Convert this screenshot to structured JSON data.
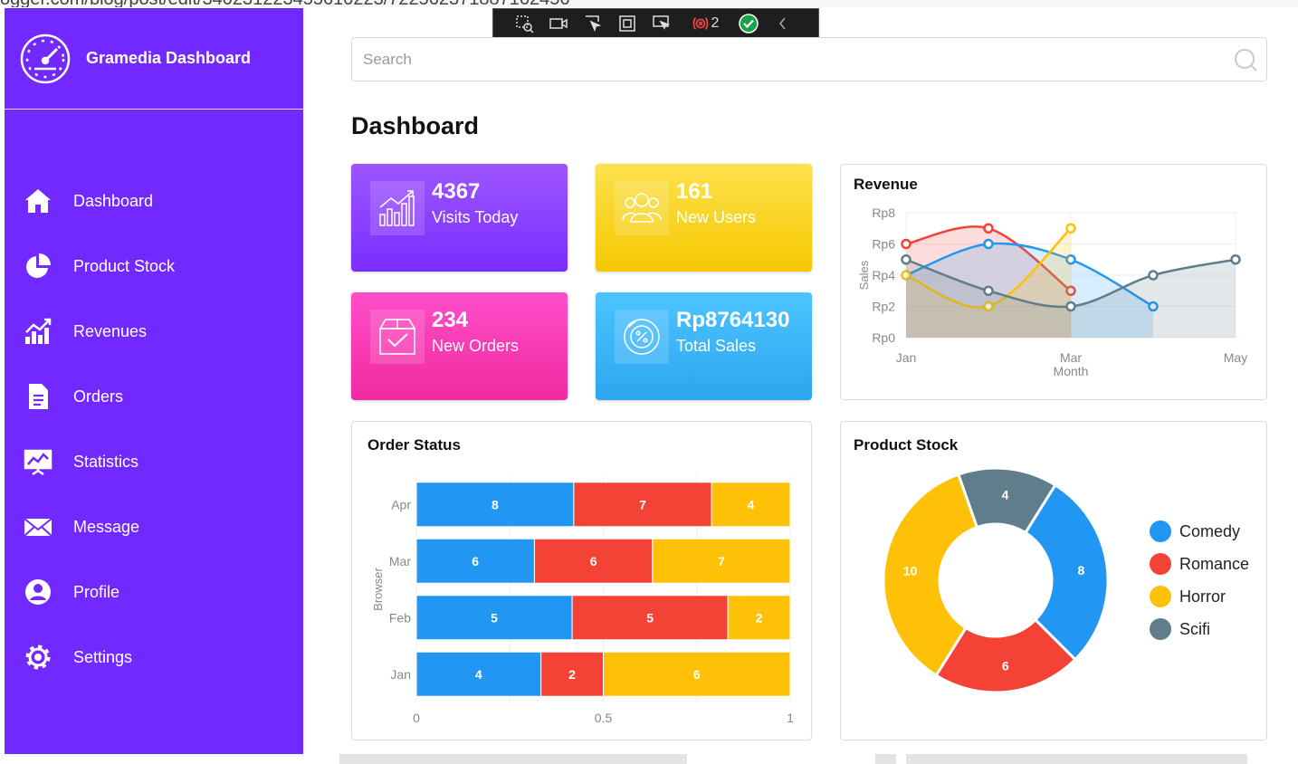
{
  "browser": {
    "url_fragment": "ogger.com/blog/post/edit/340231223455610223/722562371887162456",
    "icons": [
      "search-icon",
      "share-icon",
      "star-icon"
    ]
  },
  "devtools": {
    "error_count": "2"
  },
  "sidebar": {
    "brand": "Gramedia Dashboard",
    "items": [
      {
        "label": "Dashboard",
        "icon": "home-icon"
      },
      {
        "label": "Product Stock",
        "icon": "pie-chart-icon"
      },
      {
        "label": "Revenues",
        "icon": "bar-chart-icon"
      },
      {
        "label": "Orders",
        "icon": "document-icon"
      },
      {
        "label": "Statistics",
        "icon": "statistics-icon"
      },
      {
        "label": "Message",
        "icon": "envelope-icon"
      },
      {
        "label": "Profile",
        "icon": "user-icon"
      },
      {
        "label": "Settings",
        "icon": "gear-icon"
      }
    ]
  },
  "search": {
    "placeholder": "Search"
  },
  "page": {
    "title": "Dashboard"
  },
  "cards": {
    "visits": {
      "value": "4367",
      "label": "Visits Today"
    },
    "users": {
      "value": "161",
      "label": "New Users"
    },
    "orders": {
      "value": "234",
      "label": "New Orders"
    },
    "sales": {
      "value": "Rp8764130",
      "label": "Total Sales"
    }
  },
  "colors": {
    "sidebar": "#7129ff",
    "blue": "#2196f3",
    "red": "#f44336",
    "yellow": "#ffc107",
    "gray": "#607d8b"
  },
  "chart_data": [
    {
      "id": "revenue",
      "type": "area",
      "title": "Revenue",
      "xlabel": "Month",
      "ylabel": "Sales",
      "x_ticks": [
        "Jan",
        "Mar",
        "May"
      ],
      "y_ticks": [
        "Rp0",
        "Rp2",
        "Rp4",
        "Rp6",
        "Rp8"
      ],
      "ylim": [
        0,
        8
      ],
      "series": [
        {
          "color": "#f44336",
          "x": [
            1,
            2,
            3
          ],
          "values": [
            6,
            7,
            3
          ]
        },
        {
          "color": "#2196f3",
          "x": [
            1,
            2,
            3,
            4
          ],
          "values": [
            4,
            6,
            5,
            2
          ]
        },
        {
          "color": "#ffc107",
          "x": [
            1,
            2,
            3
          ],
          "values": [
            4,
            2,
            7
          ]
        },
        {
          "color": "#607d8b",
          "x": [
            1,
            2,
            3,
            4,
            5
          ],
          "values": [
            5,
            3,
            2,
            4,
            5
          ]
        }
      ]
    },
    {
      "id": "order-status",
      "type": "bar",
      "orientation": "horizontal",
      "stacked": "normalized",
      "title": "Order Status",
      "ylabel": "Browser",
      "categories": [
        "Apr",
        "Mar",
        "Feb",
        "Jan"
      ],
      "x_ticks": [
        "0",
        "0.5",
        "1"
      ],
      "series": [
        {
          "color": "#2196f3",
          "values": [
            8,
            6,
            5,
            4
          ]
        },
        {
          "color": "#f44336",
          "values": [
            7,
            6,
            5,
            2
          ]
        },
        {
          "color": "#ffc107",
          "values": [
            4,
            7,
            2,
            6
          ]
        }
      ]
    },
    {
      "id": "product-stock",
      "type": "pie",
      "donut": true,
      "title": "Product Stock",
      "legend_position": "right",
      "slices": [
        {
          "name": "Comedy",
          "value": 8,
          "color": "#2196f3"
        },
        {
          "name": "Romance",
          "value": 6,
          "color": "#f44336"
        },
        {
          "name": "Horror",
          "value": 10,
          "color": "#ffc107"
        },
        {
          "name": "Scifi",
          "value": 4,
          "color": "#607d8b"
        }
      ]
    }
  ]
}
